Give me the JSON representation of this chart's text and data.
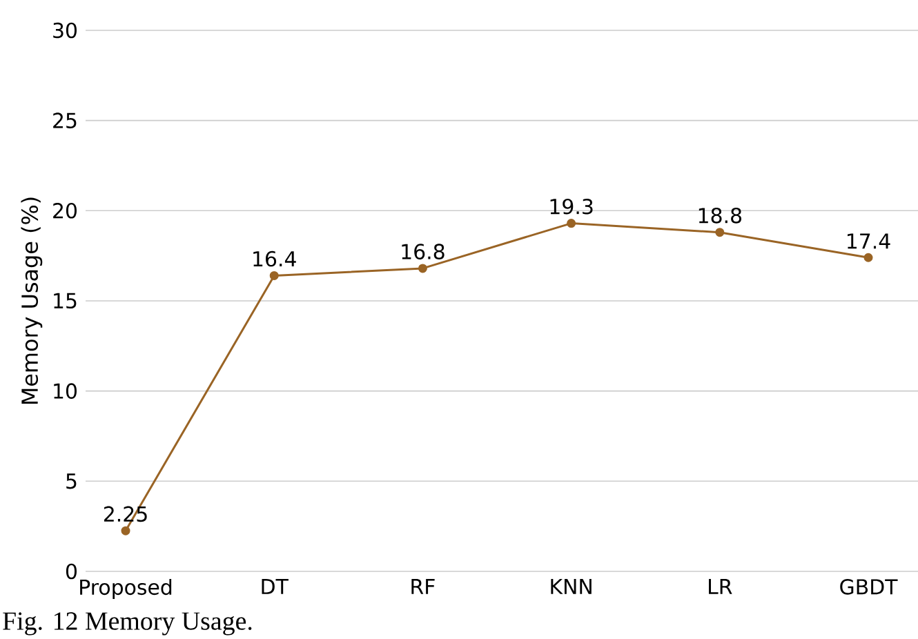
{
  "chart_data": {
    "type": "line",
    "ylabel": "Memory Usage (%)",
    "categories": [
      "Proposed",
      "DT",
      "RF",
      "KNN",
      "LR",
      "GBDT"
    ],
    "series": [
      {
        "color": "#9a6425",
        "values": [
          2.25,
          16.4,
          16.8,
          19.3,
          18.8,
          17.4
        ]
      }
    ],
    "ylim": [
      0,
      30
    ],
    "yticks": [
      0,
      5,
      10,
      15,
      20,
      25,
      30
    ],
    "grid": "y",
    "marker": "circle",
    "line_style": "solid",
    "data_labels": true,
    "annotations": [
      "Fig. 12 Memory Usage."
    ]
  }
}
